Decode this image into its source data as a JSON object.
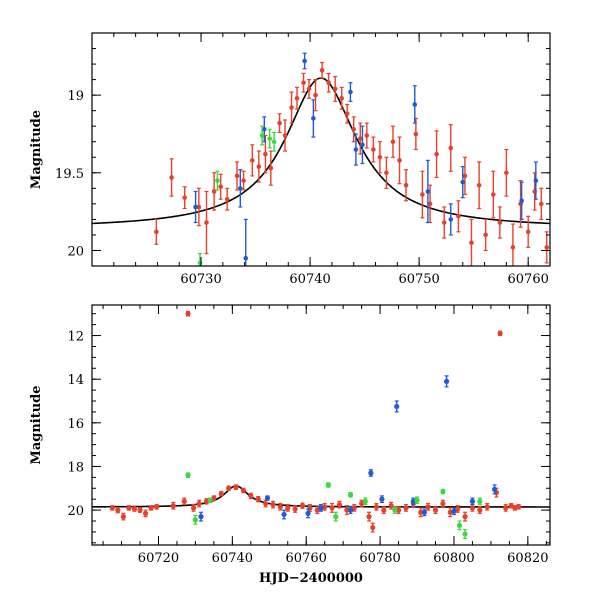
{
  "colors": {
    "red": "#e8402a",
    "blue": "#1f5bd6",
    "green": "#3cd83c",
    "curve": "#000000"
  },
  "chart_data": [
    {
      "type": "scatter",
      "xlabel": "",
      "ylabel": "Magnitude",
      "xlim": [
        60720,
        60762
      ],
      "ylim": [
        20.1,
        18.6
      ],
      "y_inverted": true,
      "xticks": [
        60730,
        60740,
        60750,
        60760
      ],
      "yticks": [
        19,
        19.5,
        20
      ],
      "ytick_labels": [
        "19",
        "19.5",
        "20"
      ],
      "xtick_labels": [
        "60730",
        "60740",
        "60750",
        "60760"
      ],
      "model_curve": {
        "shape": "lorentzian",
        "peak_x": 60741.0,
        "peak_mag": 18.89,
        "baseline_mag": 19.86,
        "half_width": 4.0
      },
      "series": [
        {
          "color": "red",
          "points": [
            [
              60725.9,
              19.88,
              0.08
            ],
            [
              60727.3,
              19.53,
              0.12
            ],
            [
              60728.5,
              19.66,
              0.07
            ],
            [
              60729.8,
              19.72,
              0.12
            ],
            [
              60730.5,
              19.82,
              0.2
            ],
            [
              60731.2,
              19.62,
              0.12
            ],
            [
              60731.8,
              19.59,
              0.08
            ],
            [
              60732.4,
              19.67,
              0.07
            ],
            [
              60733.3,
              19.52,
              0.09
            ],
            [
              60733.9,
              19.55,
              0.06
            ],
            [
              60734.7,
              19.42,
              0.1
            ],
            [
              60735.3,
              19.46,
              0.1
            ],
            [
              60735.9,
              19.38,
              0.12
            ],
            [
              60736.4,
              19.47,
              0.11
            ],
            [
              60737.2,
              19.18,
              0.06
            ],
            [
              60737.7,
              19.26,
              0.1
            ],
            [
              60738.3,
              19.08,
              0.1
            ],
            [
              60738.8,
              19.02,
              0.07
            ],
            [
              60739.4,
              18.92,
              0.06
            ],
            [
              60739.9,
              18.96,
              0.06
            ],
            [
              60740.5,
              19.0,
              0.1
            ],
            [
              60741.1,
              18.84,
              0.05
            ],
            [
              60741.7,
              18.92,
              0.06
            ],
            [
              60742.3,
              18.96,
              0.08
            ],
            [
              60742.9,
              19.02,
              0.07
            ],
            [
              60743.4,
              19.12,
              0.06
            ],
            [
              60744.0,
              19.22,
              0.08
            ],
            [
              60744.6,
              19.28,
              0.1
            ],
            [
              60745.2,
              19.26,
              0.08
            ],
            [
              60745.8,
              19.35,
              0.08
            ],
            [
              60746.4,
              19.4,
              0.1
            ],
            [
              60747.0,
              19.5,
              0.1
            ],
            [
              60747.6,
              19.3,
              0.1
            ],
            [
              60748.2,
              19.42,
              0.15
            ],
            [
              60748.8,
              19.58,
              0.1
            ],
            [
              60749.7,
              19.25,
              0.1
            ],
            [
              60750.3,
              19.64,
              0.15
            ],
            [
              60751.0,
              19.7,
              0.12
            ],
            [
              60751.6,
              19.38,
              0.15
            ],
            [
              60752.3,
              19.82,
              0.1
            ],
            [
              60752.9,
              19.34,
              0.15
            ],
            [
              60753.6,
              19.78,
              0.1
            ],
            [
              60754.2,
              19.52,
              0.12
            ],
            [
              60754.8,
              19.95,
              0.15
            ],
            [
              60755.5,
              19.58,
              0.15
            ],
            [
              60756.1,
              19.9,
              0.1
            ],
            [
              60756.8,
              19.64,
              0.15
            ],
            [
              60757.4,
              19.82,
              0.1
            ],
            [
              60758.0,
              19.5,
              0.15
            ],
            [
              60758.6,
              19.98,
              0.15
            ],
            [
              60759.3,
              19.7,
              0.15
            ],
            [
              60760.0,
              19.88,
              0.1
            ],
            [
              60760.6,
              19.62,
              0.12
            ],
            [
              60761.2,
              19.7,
              0.1
            ],
            [
              60761.7,
              19.98,
              0.1
            ]
          ]
        },
        {
          "color": "blue",
          "points": [
            [
              60729.5,
              19.72,
              0.1
            ],
            [
              60733.6,
              19.6,
              0.12
            ],
            [
              60734.1,
              20.05,
              0.25
            ],
            [
              60735.8,
              19.22,
              0.08
            ],
            [
              60739.5,
              18.78,
              0.05
            ],
            [
              60740.3,
              19.15,
              0.12
            ],
            [
              60743.7,
              18.98,
              0.06
            ],
            [
              60744.2,
              19.35,
              0.1
            ],
            [
              60744.8,
              19.32,
              0.12
            ],
            [
              60749.6,
              19.06,
              0.12
            ],
            [
              60750.8,
              19.62,
              0.2
            ],
            [
              60752.9,
              19.8,
              0.1
            ],
            [
              60754.0,
              19.56,
              0.1
            ],
            [
              60759.4,
              19.68,
              0.12
            ],
            [
              60760.7,
              19.55,
              0.12
            ]
          ]
        },
        {
          "color": "green",
          "points": [
            [
              60729.9,
              20.08,
              0.06
            ],
            [
              60731.5,
              19.55,
              0.06
            ],
            [
              60735.6,
              19.26,
              0.06
            ],
            [
              60736.3,
              19.28,
              0.06
            ],
            [
              60736.7,
              19.3,
              0.06
            ]
          ]
        }
      ]
    },
    {
      "type": "scatter",
      "xlabel": "HJD−2400000",
      "ylabel": "Magnitude",
      "xlim": [
        60702,
        60826
      ],
      "ylim": [
        21.6,
        10.6
      ],
      "y_inverted": true,
      "xticks": [
        60720,
        60740,
        60760,
        60780,
        60800,
        60820
      ],
      "xtick_labels": [
        "60720",
        "60740",
        "60760",
        "60780",
        "60800",
        "60820"
      ],
      "yticks": [
        12,
        14,
        16,
        18,
        20
      ],
      "ytick_labels": [
        "12",
        "14",
        "16",
        "18",
        "20"
      ],
      "model_curve": {
        "shape": "lorentzian",
        "peak_x": 60741.0,
        "peak_mag": 18.89,
        "baseline_mag": 19.86,
        "half_width": 4.0
      },
      "series": [
        {
          "color": "red",
          "points": [
            [
              60707.5,
              19.9,
              0.1
            ],
            [
              60709.0,
              20.0,
              0.12
            ],
            [
              60710.5,
              20.3,
              0.15
            ],
            [
              60712.0,
              19.9,
              0.1
            ],
            [
              60713.5,
              19.95,
              0.1
            ],
            [
              60715.0,
              20.0,
              0.1
            ],
            [
              60716.5,
              20.15,
              0.15
            ],
            [
              60718.0,
              19.9,
              0.1
            ],
            [
              60719.5,
              19.85,
              0.1
            ],
            [
              60724.0,
              19.8,
              0.15
            ],
            [
              60728.0,
              11.0,
              0.1
            ],
            [
              60727.0,
              19.6,
              0.15
            ],
            [
              60729.5,
              19.9,
              0.15
            ],
            [
              60731.0,
              19.7,
              0.15
            ],
            [
              60733.0,
              19.6,
              0.12
            ],
            [
              60735.0,
              19.45,
              0.1
            ],
            [
              60737.0,
              19.25,
              0.1
            ],
            [
              60739.0,
              19.0,
              0.1
            ],
            [
              60741.0,
              18.95,
              0.1
            ],
            [
              60743.0,
              19.1,
              0.1
            ],
            [
              60745.0,
              19.35,
              0.12
            ],
            [
              60747.0,
              19.5,
              0.12
            ],
            [
              60749.0,
              19.7,
              0.15
            ],
            [
              60751.0,
              19.75,
              0.15
            ],
            [
              60753.0,
              19.85,
              0.15
            ],
            [
              60755.0,
              19.9,
              0.15
            ],
            [
              60757.0,
              19.95,
              0.15
            ],
            [
              60759.0,
              19.8,
              0.12
            ],
            [
              60761.0,
              19.9,
              0.15
            ],
            [
              60763.0,
              20.0,
              0.15
            ],
            [
              60765.0,
              19.85,
              0.15
            ],
            [
              60767.0,
              19.9,
              0.2
            ],
            [
              60769.0,
              19.75,
              0.15
            ],
            [
              60771.0,
              20.0,
              0.2
            ],
            [
              60773.0,
              19.9,
              0.15
            ],
            [
              60775.0,
              19.7,
              0.15
            ],
            [
              60777.0,
              20.3,
              0.2
            ],
            [
              60778.0,
              20.8,
              0.2
            ],
            [
              60779.0,
              19.85,
              0.15
            ],
            [
              60781.0,
              20.0,
              0.15
            ],
            [
              60783.0,
              19.8,
              0.15
            ],
            [
              60785.0,
              20.0,
              0.15
            ],
            [
              60787.0,
              19.9,
              0.15
            ],
            [
              60789.0,
              19.7,
              0.15
            ],
            [
              60791.0,
              20.1,
              0.2
            ],
            [
              60793.0,
              19.85,
              0.15
            ],
            [
              60795.0,
              20.0,
              0.15
            ],
            [
              60797.0,
              19.7,
              0.15
            ],
            [
              60799.0,
              20.1,
              0.2
            ],
            [
              60801.0,
              19.95,
              0.15
            ],
            [
              60803.0,
              20.3,
              0.2
            ],
            [
              60805.0,
              19.9,
              0.15
            ],
            [
              60807.0,
              20.0,
              0.15
            ],
            [
              60809.0,
              19.85,
              0.15
            ],
            [
              60811.5,
              19.2,
              0.2
            ],
            [
              60812.5,
              11.9,
              0.1
            ],
            [
              60814.0,
              19.9,
              0.15
            ],
            [
              60815.5,
              19.8,
              0.1
            ],
            [
              60816.5,
              19.9,
              0.1
            ],
            [
              60817.5,
              19.85,
              0.1
            ]
          ]
        },
        {
          "color": "blue",
          "points": [
            [
              60731.5,
              20.3,
              0.2
            ],
            [
              60749.5,
              19.45,
              0.1
            ],
            [
              60754.0,
              20.2,
              0.2
            ],
            [
              60760.5,
              20.15,
              0.2
            ],
            [
              60764.0,
              19.9,
              0.15
            ],
            [
              60772.0,
              20.0,
              0.15
            ],
            [
              60777.5,
              18.3,
              0.15
            ],
            [
              60780.5,
              19.5,
              0.15
            ],
            [
              60784.5,
              15.25,
              0.25
            ],
            [
              60789.0,
              19.6,
              0.15
            ],
            [
              60792.0,
              20.1,
              0.15
            ],
            [
              60798.0,
              14.1,
              0.25
            ],
            [
              60800.0,
              20.05,
              0.15
            ],
            [
              60805.0,
              19.6,
              0.15
            ],
            [
              60811.0,
              19.05,
              0.2
            ]
          ]
        },
        {
          "color": "green",
          "points": [
            [
              60728.0,
              18.4,
              0.1
            ],
            [
              60730.0,
              20.45,
              0.2
            ],
            [
              60734.0,
              19.55,
              0.1
            ],
            [
              60766.0,
              18.85,
              0.1
            ],
            [
              60768.0,
              20.3,
              0.2
            ],
            [
              60772.0,
              19.3,
              0.1
            ],
            [
              60776.0,
              19.6,
              0.15
            ],
            [
              60784.0,
              20.0,
              0.15
            ],
            [
              60790.0,
              19.55,
              0.15
            ],
            [
              60797.0,
              19.15,
              0.1
            ],
            [
              60801.5,
              20.7,
              0.2
            ],
            [
              60803.0,
              21.1,
              0.2
            ],
            [
              60807.0,
              19.6,
              0.15
            ]
          ]
        }
      ]
    }
  ]
}
